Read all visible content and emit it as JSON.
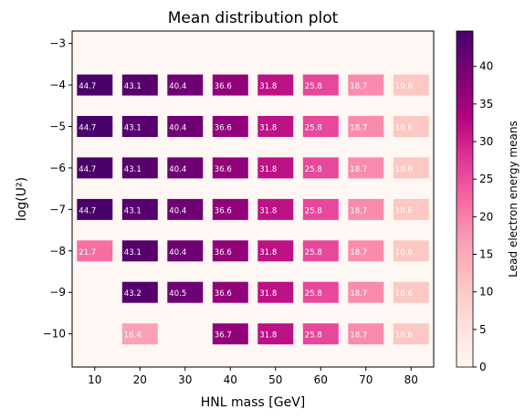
{
  "chart_data": {
    "type": "heatmap",
    "title": "Mean distribution plot",
    "xlabel": "HNL mass [GeV]",
    "ylabel": "log(U²)",
    "colorbar_label": "Lead electron energy means",
    "x_ticks": [
      "10",
      "20",
      "30",
      "40",
      "50",
      "60",
      "70",
      "80"
    ],
    "y_ticks": [
      "−3",
      "−4",
      "−5",
      "−6",
      "−7",
      "−8",
      "−9",
      "−10"
    ],
    "colorbar_ticks": [
      "0",
      "5",
      "10",
      "15",
      "20",
      "25",
      "30",
      "35",
      "40"
    ],
    "colormap": "RdPu",
    "vmin": 0,
    "vmax": 44.7,
    "background_color": "#fff7f3",
    "xlim": [
      5,
      85
    ],
    "ylim": [
      -10.8,
      -2.7
    ],
    "cells": [
      {
        "x": 10,
        "y": -4,
        "value": 44.7,
        "label": "44.7"
      },
      {
        "x": 20,
        "y": -4,
        "value": 43.1,
        "label": "43.1"
      },
      {
        "x": 30,
        "y": -4,
        "value": 40.4,
        "label": "40.4"
      },
      {
        "x": 40,
        "y": -4,
        "value": 36.6,
        "label": "36.6"
      },
      {
        "x": 50,
        "y": -4,
        "value": 31.8,
        "label": "31.8"
      },
      {
        "x": 60,
        "y": -4,
        "value": 25.8,
        "label": "25.8"
      },
      {
        "x": 70,
        "y": -4,
        "value": 18.7,
        "label": "18.7"
      },
      {
        "x": 80,
        "y": -4,
        "value": 10.6,
        "label": "10.6"
      },
      {
        "x": 10,
        "y": -5,
        "value": 44.7,
        "label": "44.7"
      },
      {
        "x": 20,
        "y": -5,
        "value": 43.1,
        "label": "43.1"
      },
      {
        "x": 30,
        "y": -5,
        "value": 40.4,
        "label": "40.4"
      },
      {
        "x": 40,
        "y": -5,
        "value": 36.6,
        "label": "36.6"
      },
      {
        "x": 50,
        "y": -5,
        "value": 31.8,
        "label": "31.8"
      },
      {
        "x": 60,
        "y": -5,
        "value": 25.8,
        "label": "25.8"
      },
      {
        "x": 70,
        "y": -5,
        "value": 18.7,
        "label": "18.7"
      },
      {
        "x": 80,
        "y": -5,
        "value": 10.6,
        "label": "10.6"
      },
      {
        "x": 10,
        "y": -6,
        "value": 44.7,
        "label": "44.7"
      },
      {
        "x": 20,
        "y": -6,
        "value": 43.1,
        "label": "43.1"
      },
      {
        "x": 30,
        "y": -6,
        "value": 40.4,
        "label": "40.4"
      },
      {
        "x": 40,
        "y": -6,
        "value": 36.6,
        "label": "36.6"
      },
      {
        "x": 50,
        "y": -6,
        "value": 31.8,
        "label": "31.8"
      },
      {
        "x": 60,
        "y": -6,
        "value": 25.8,
        "label": "25.8"
      },
      {
        "x": 70,
        "y": -6,
        "value": 18.7,
        "label": "18.7"
      },
      {
        "x": 80,
        "y": -6,
        "value": 10.6,
        "label": "10.6"
      },
      {
        "x": 10,
        "y": -7,
        "value": 44.7,
        "label": "44.7"
      },
      {
        "x": 20,
        "y": -7,
        "value": 43.1,
        "label": "43.1"
      },
      {
        "x": 30,
        "y": -7,
        "value": 40.4,
        "label": "40.4"
      },
      {
        "x": 40,
        "y": -7,
        "value": 36.6,
        "label": "36.6"
      },
      {
        "x": 50,
        "y": -7,
        "value": 31.8,
        "label": "31.8"
      },
      {
        "x": 60,
        "y": -7,
        "value": 25.8,
        "label": "25.8"
      },
      {
        "x": 70,
        "y": -7,
        "value": 18.7,
        "label": "18.7"
      },
      {
        "x": 80,
        "y": -7,
        "value": 10.6,
        "label": "10.6"
      },
      {
        "x": 10,
        "y": -8,
        "value": 21.7,
        "label": "21.7"
      },
      {
        "x": 20,
        "y": -8,
        "value": 43.1,
        "label": "43.1"
      },
      {
        "x": 30,
        "y": -8,
        "value": 40.4,
        "label": "40.4"
      },
      {
        "x": 40,
        "y": -8,
        "value": 36.6,
        "label": "36.6"
      },
      {
        "x": 50,
        "y": -8,
        "value": 31.8,
        "label": "31.8"
      },
      {
        "x": 60,
        "y": -8,
        "value": 25.8,
        "label": "25.8"
      },
      {
        "x": 70,
        "y": -8,
        "value": 18.7,
        "label": "18.7"
      },
      {
        "x": 80,
        "y": -8,
        "value": 10.6,
        "label": "10.6"
      },
      {
        "x": 10,
        "y": -9,
        "value": 0.0,
        "label": "0.0"
      },
      {
        "x": 20,
        "y": -9,
        "value": 43.2,
        "label": "43.2"
      },
      {
        "x": 30,
        "y": -9,
        "value": 40.5,
        "label": "40.5"
      },
      {
        "x": 40,
        "y": -9,
        "value": 36.6,
        "label": "36.6"
      },
      {
        "x": 50,
        "y": -9,
        "value": 31.8,
        "label": "31.8"
      },
      {
        "x": 60,
        "y": -9,
        "value": 25.8,
        "label": "25.8"
      },
      {
        "x": 70,
        "y": -9,
        "value": 18.7,
        "label": "18.7"
      },
      {
        "x": 80,
        "y": -9,
        "value": 10.6,
        "label": "10.6"
      },
      {
        "x": 20,
        "y": -10,
        "value": 16.4,
        "label": "16.4"
      },
      {
        "x": 40,
        "y": -10,
        "value": 36.7,
        "label": "36.7"
      },
      {
        "x": 50,
        "y": -10,
        "value": 31.8,
        "label": "31.8"
      },
      {
        "x": 60,
        "y": -10,
        "value": 25.8,
        "label": "25.8"
      },
      {
        "x": 70,
        "y": -10,
        "value": 18.7,
        "label": "18.7"
      },
      {
        "x": 80,
        "y": -10,
        "value": 10.6,
        "label": "10.6"
      }
    ]
  }
}
